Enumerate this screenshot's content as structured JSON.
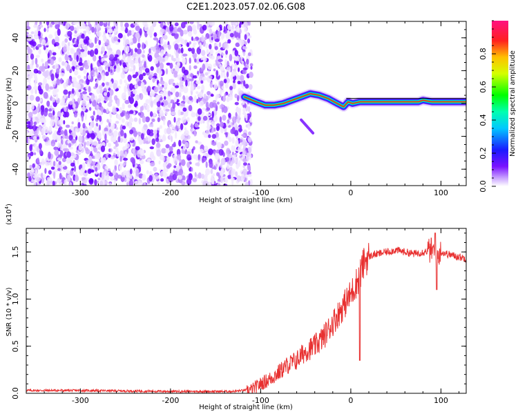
{
  "title": "C2E1.2023.057.02.06.G08",
  "colors": {
    "snr_line": "#e83030",
    "ridge": "#2a8a2a"
  },
  "chart_data": [
    {
      "type": "heatmap",
      "xlabel": "Height of straight line (km)",
      "ylabel": "Frequency (Hz)",
      "xlim": [
        -360,
        128
      ],
      "ylim": [
        -50,
        50
      ],
      "x_ticks": [
        "-300",
        "-200",
        "-100",
        "0",
        "100"
      ],
      "y_ticks": [
        "-40",
        "-20",
        "0",
        "20",
        "40"
      ],
      "colorbar": {
        "label": "Normalized spectral amplitude",
        "range": [
          0,
          1
        ],
        "ticks": [
          "0.0",
          "0.2",
          "0.4",
          "0.6",
          "0.8"
        ],
        "colormap": "rainbow (white-violet-blue-cyan-green-yellow-red-pink)"
      },
      "noise_region_x": [
        -360,
        -110
      ],
      "ridge_line": {
        "x": [
          -118,
          -105,
          -95,
          -85,
          -75,
          -65,
          -55,
          -45,
          -35,
          -25,
          -15,
          -8,
          -3,
          2,
          10,
          30,
          60,
          75,
          80,
          90,
          100,
          128
        ],
        "y": [
          4,
          1,
          -1,
          -1,
          0,
          2,
          4,
          6,
          5,
          3,
          0,
          -2,
          1,
          0,
          1,
          1,
          1,
          1,
          2,
          1,
          1,
          1
        ]
      },
      "faint_tail": {
        "x": [
          -55,
          -42
        ],
        "y": [
          -10,
          -18
        ]
      }
    },
    {
      "type": "line",
      "xlabel": "Height of straight line (km)",
      "ylabel": "SNR (10 * v/v)",
      "y_exponent_label": "(x10",
      "y_exponent_power": "4",
      "y_exponent_close": ")",
      "xlim": [
        -360,
        128
      ],
      "ylim": [
        0,
        1.75
      ],
      "x_ticks": [
        "-300",
        "-200",
        "-100",
        "0",
        "100"
      ],
      "y_ticks": [
        "0.0",
        "0.5",
        "1.0",
        "1.5"
      ],
      "series": [
        {
          "x": [
            -360,
            -300,
            -200,
            -130,
            -110,
            -100,
            -90,
            -80,
            -70,
            -60,
            -50,
            -40,
            -30,
            -20,
            -10,
            0,
            5,
            10,
            15,
            20,
            25,
            30,
            40,
            50,
            60,
            70,
            80,
            90,
            95,
            100,
            110,
            128
          ],
          "y": [
            0.03,
            0.03,
            0.02,
            0.02,
            0.04,
            0.1,
            0.15,
            0.22,
            0.3,
            0.35,
            0.45,
            0.5,
            0.6,
            0.75,
            0.9,
            1.05,
            1.15,
            1.25,
            1.4,
            1.45,
            1.47,
            1.48,
            1.5,
            1.52,
            1.5,
            1.48,
            1.5,
            1.52,
            1.45,
            1.5,
            1.47,
            1.43
          ]
        }
      ]
    }
  ]
}
